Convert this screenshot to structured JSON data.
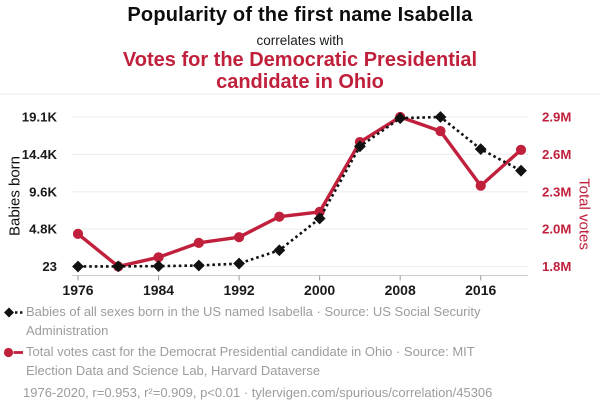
{
  "header": {
    "title": "Popularity of the first name Isabella",
    "connector": "correlates with",
    "subtitle": "Votes for the Democratic Presidential candidate in Ohio"
  },
  "colors": {
    "accent_red": "#c0203c",
    "series_black": "#111111",
    "muted_gray": "#9c9c9c",
    "gridline": "#efefef",
    "axis_line": "#cccccc"
  },
  "chart_data": {
    "type": "line",
    "title": "Popularity of the first name Isabella correlates with Votes for the Democratic Presidential candidate in Ohio",
    "x": [
      1976,
      1980,
      1984,
      1988,
      1992,
      1996,
      2000,
      2004,
      2008,
      2012,
      2016,
      2020
    ],
    "x_tick_labels": [
      "1976",
      "1984",
      "1992",
      "2000",
      "2008",
      "2016"
    ],
    "series": [
      {
        "name": "Babies of all sexes born in the US named Isabella",
        "axis": "left",
        "color": "#111111",
        "line_style": "dashed",
        "marker": "diamond",
        "values": [
          23,
          40,
          70,
          150,
          400,
          2100,
          6150,
          15350,
          18950,
          19100,
          15000,
          12250
        ]
      },
      {
        "name": "Total votes cast for the Democrat Presidential candidate in Ohio",
        "axis": "right",
        "color": "#c0203c",
        "line_style": "solid",
        "marker": "circle",
        "values": [
          2011000,
          1752000,
          1825000,
          1940000,
          1985000,
          2148000,
          2186000,
          2741000,
          2940000,
          2828000,
          2394000,
          2679000
        ]
      }
    ],
    "left_axis": {
      "label": "Babies born",
      "min": 23,
      "max": 19100,
      "tick_labels": [
        "23",
        "4.8K",
        "9.6K",
        "14.4K",
        "19.1K"
      ]
    },
    "right_axis": {
      "label": "Total votes",
      "min": 1752000,
      "max": 2940000,
      "tick_labels": [
        "1.8M",
        "2.0M",
        "2.3M",
        "2.6M",
        "2.9M"
      ]
    },
    "grid": true,
    "legend_position": "bottom"
  },
  "legend": {
    "items": [
      {
        "marker": "black-diamond-dashed",
        "label": "Babies of all sexes born in the US named Isabella · Source: US Social Security Administration"
      },
      {
        "marker": "red-circle-solid",
        "label": "Total votes cast for the Democrat Presidential candidate in Ohio · Source: MIT Election Data and Science Lab, Harvard Dataverse"
      }
    ]
  },
  "footer": {
    "text": "1976-2020, r=0.953, r²=0.909, p<0.01 · tylervigen.com/spurious/correlation/45306"
  }
}
